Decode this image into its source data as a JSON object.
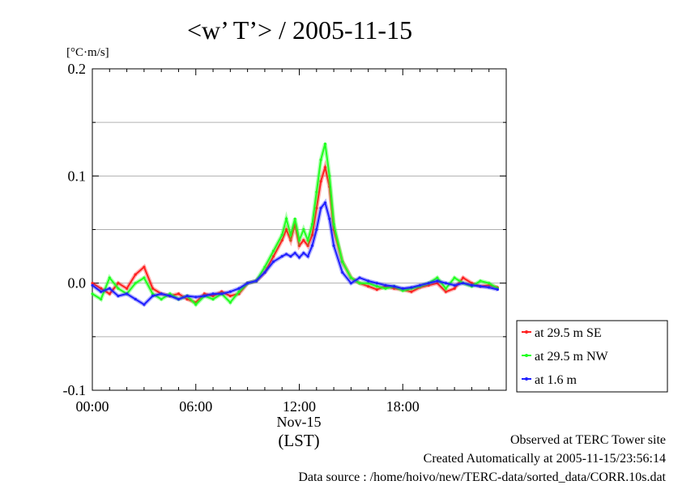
{
  "chart_data": {
    "type": "line",
    "title": "<w’ T’> / 2005-11-15",
    "ylabel": "[°C·m/s]",
    "xlabel": "(LST)",
    "x_date_label": "Nov-15",
    "ylim": [
      -0.1,
      0.2
    ],
    "xlim": [
      "00:00",
      "24:00"
    ],
    "yticks": [
      -0.1,
      0.0,
      0.1,
      0.2
    ],
    "ytick_labels": [
      "-0.1",
      "0.0",
      "0.1",
      "0.2"
    ],
    "xticks": [
      "00:00",
      "06:00",
      "12:00",
      "18:00"
    ],
    "grid": true,
    "legend_position": "right-bottom outside",
    "x_hours": [
      0,
      0.5,
      1,
      1.5,
      2,
      2.5,
      3,
      3.5,
      4,
      4.5,
      5,
      5.5,
      6,
      6.5,
      7,
      7.5,
      8,
      8.5,
      9,
      9.5,
      10,
      10.5,
      11,
      11.25,
      11.5,
      11.75,
      12,
      12.25,
      12.5,
      12.75,
      13,
      13.25,
      13.5,
      13.75,
      14,
      14.5,
      15,
      15.5,
      16,
      16.5,
      17,
      17.5,
      18,
      18.5,
      19,
      19.5,
      20,
      20.5,
      21,
      21.5,
      22,
      22.5,
      23,
      23.5
    ],
    "series": [
      {
        "name": "at 29.5 m SE",
        "color": "#ff2020",
        "values": [
          0.0,
          -0.005,
          -0.01,
          0.0,
          -0.005,
          0.008,
          0.015,
          -0.005,
          -0.01,
          -0.012,
          -0.01,
          -0.015,
          -0.018,
          -0.01,
          -0.012,
          -0.008,
          -0.012,
          -0.01,
          0.0,
          0.002,
          0.01,
          0.025,
          0.04,
          0.05,
          0.04,
          0.055,
          0.035,
          0.04,
          0.035,
          0.045,
          0.07,
          0.095,
          0.108,
          0.09,
          0.05,
          0.02,
          0.005,
          0.0,
          -0.003,
          -0.006,
          -0.003,
          -0.005,
          -0.006,
          -0.008,
          -0.004,
          -0.002,
          0.0,
          -0.008,
          -0.005,
          0.005,
          0.0,
          -0.003,
          -0.002,
          -0.004
        ]
      },
      {
        "name": "at 29.5 m NW",
        "color": "#20ff20",
        "values": [
          -0.01,
          -0.015,
          0.005,
          -0.005,
          -0.01,
          0.0,
          0.005,
          -0.01,
          -0.015,
          -0.01,
          -0.015,
          -0.012,
          -0.02,
          -0.012,
          -0.015,
          -0.01,
          -0.018,
          -0.008,
          0.0,
          0.002,
          0.015,
          0.03,
          0.045,
          0.06,
          0.045,
          0.06,
          0.04,
          0.05,
          0.04,
          0.055,
          0.085,
          0.115,
          0.13,
          0.1,
          0.055,
          0.02,
          0.005,
          0.0,
          0.0,
          -0.003,
          -0.005,
          -0.003,
          -0.007,
          -0.005,
          -0.003,
          0.0,
          0.005,
          -0.005,
          0.005,
          0.0,
          -0.003,
          0.002,
          0.0,
          -0.005
        ]
      },
      {
        "name": "at 1.6 m",
        "color": "#2020ff",
        "values": [
          -0.002,
          -0.008,
          -0.005,
          -0.012,
          -0.01,
          -0.015,
          -0.02,
          -0.012,
          -0.01,
          -0.012,
          -0.015,
          -0.012,
          -0.013,
          -0.012,
          -0.01,
          -0.01,
          -0.008,
          -0.005,
          0.0,
          0.002,
          0.01,
          0.02,
          0.025,
          0.027,
          0.025,
          0.028,
          0.024,
          0.028,
          0.025,
          0.035,
          0.05,
          0.07,
          0.075,
          0.06,
          0.035,
          0.01,
          0.0,
          0.005,
          0.002,
          0.0,
          -0.002,
          -0.003,
          -0.005,
          -0.004,
          -0.002,
          0.0,
          0.002,
          0.0,
          -0.002,
          0.0,
          -0.002,
          -0.003,
          -0.004,
          -0.006
        ]
      }
    ]
  },
  "footer": {
    "observed": "Observed at TERC Tower site",
    "created": "Created Automatically at 2005-11-15/23:56:14",
    "source": "Data source : /home/hoivo/new/TERC-data/sorted_data/CORR.10s.dat"
  }
}
